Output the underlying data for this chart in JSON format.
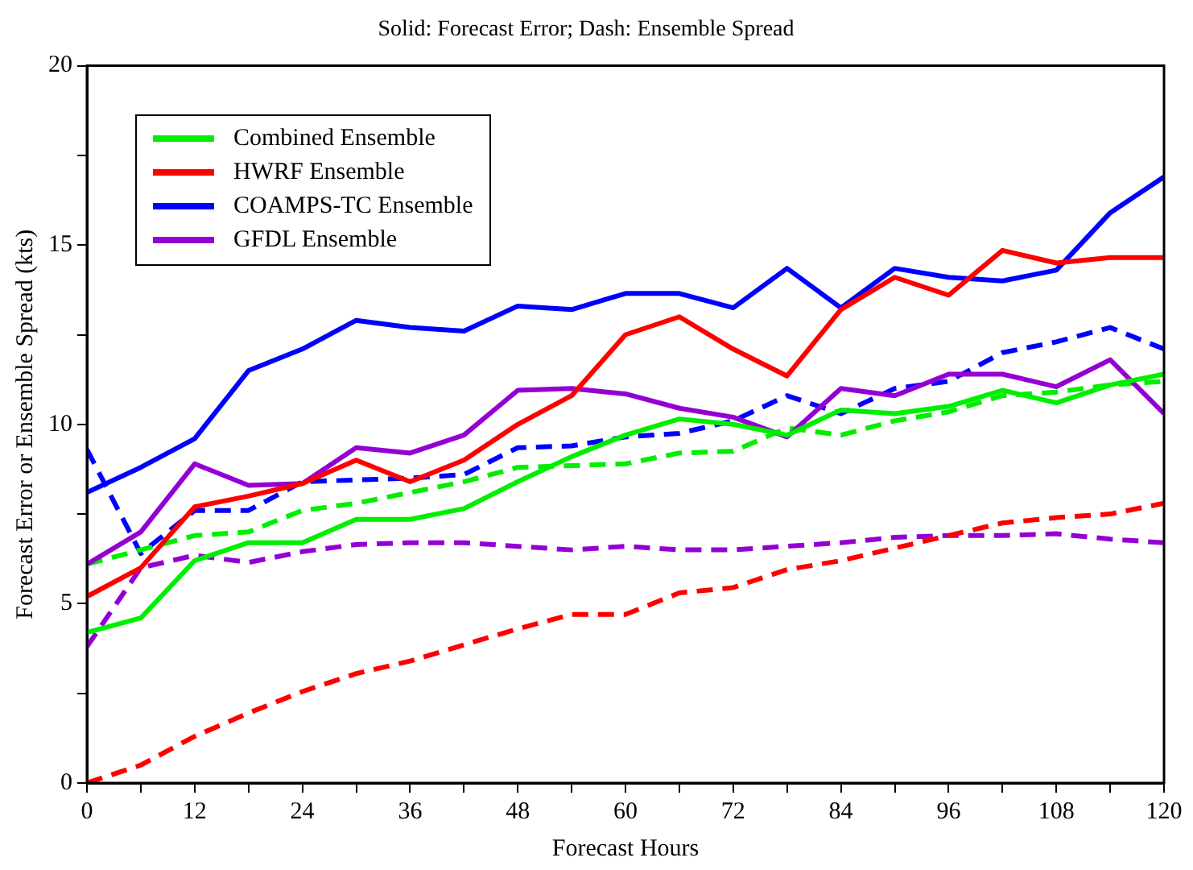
{
  "chart_data": {
    "type": "line",
    "title": "Solid: Forecast Error; Dash: Ensemble Spread",
    "xlabel": "Forecast Hours",
    "ylabel": "Forecast Error or Ensemble Spread (kts)",
    "x": [
      0,
      6,
      12,
      18,
      24,
      30,
      36,
      42,
      48,
      54,
      60,
      66,
      72,
      78,
      84,
      90,
      96,
      102,
      108,
      114,
      120
    ],
    "xlim": [
      0,
      120
    ],
    "xticks": [
      0,
      {
        "value": 6,
        "label": null
      },
      12,
      {
        "value": 18,
        "label": null
      },
      24,
      {
        "value": 30,
        "label": null
      },
      36,
      {
        "value": 42,
        "label": null
      },
      48,
      {
        "value": 54,
        "label": null
      },
      60,
      {
        "value": 66,
        "label": null
      },
      72,
      {
        "value": 78,
        "label": null
      },
      84,
      {
        "value": 90,
        "label": null
      },
      96,
      {
        "value": 102,
        "label": null
      },
      108,
      {
        "value": 114,
        "label": null
      },
      120
    ],
    "ylim": [
      0,
      20
    ],
    "yticks": [
      0,
      {
        "value": 2.5,
        "label": null
      },
      5,
      {
        "value": 7.5,
        "label": null
      },
      10,
      {
        "value": 12.5,
        "label": null
      },
      15,
      {
        "value": 17.5,
        "label": null
      },
      20
    ],
    "legend": "top left",
    "marker": "none",
    "series": [
      {
        "name": "Combined Ensemble",
        "color": "#00ee00",
        "line_style": "solid",
        "values": [
          4.2,
          4.6,
          6.2,
          6.7,
          6.7,
          7.35,
          7.35,
          7.65,
          8.4,
          9.1,
          9.7,
          10.15,
          10.0,
          9.7,
          10.4,
          10.3,
          10.5,
          10.95,
          10.6,
          11.1,
          11.4
        ]
      },
      {
        "name": "HWRF Ensemble",
        "color": "#ff0000",
        "line_style": "solid",
        "values": [
          5.2,
          6.0,
          7.7,
          8.0,
          8.35,
          9.0,
          8.4,
          9.0,
          10.0,
          10.8,
          12.5,
          13.0,
          12.1,
          11.35,
          13.2,
          14.1,
          13.6,
          14.85,
          14.5,
          14.65,
          14.65
        ]
      },
      {
        "name": "COAMPS-TC Ensemble",
        "color": "#0000ff",
        "line_style": "solid",
        "values": [
          8.1,
          8.8,
          9.6,
          11.5,
          12.1,
          12.9,
          12.7,
          12.6,
          13.3,
          13.2,
          13.65,
          13.65,
          13.25,
          14.35,
          13.25,
          14.35,
          14.1,
          14.0,
          14.3,
          15.9,
          16.9
        ]
      },
      {
        "name": "GFDL Ensemble",
        "color": "#9400d3",
        "line_style": "solid",
        "values": [
          6.1,
          7.0,
          8.9,
          8.3,
          8.35,
          9.35,
          9.2,
          9.7,
          10.95,
          11.0,
          10.85,
          10.45,
          10.2,
          9.65,
          11.0,
          10.8,
          11.4,
          11.4,
          11.05,
          11.8,
          10.3
        ]
      },
      {
        "color": "#00ee00",
        "line_style": "dashed",
        "values": [
          6.1,
          6.5,
          6.9,
          7.0,
          7.6,
          7.8,
          8.1,
          8.4,
          8.8,
          8.85,
          8.9,
          9.2,
          9.25,
          9.9,
          9.7,
          10.1,
          10.35,
          10.8,
          10.9,
          11.1,
          11.2
        ]
      },
      {
        "color": "#ff0000",
        "line_style": "dashed",
        "values": [
          0.0,
          0.5,
          1.3,
          1.95,
          2.55,
          3.05,
          3.4,
          3.85,
          4.3,
          4.7,
          4.7,
          5.3,
          5.45,
          5.95,
          6.2,
          6.55,
          6.9,
          7.25,
          7.4,
          7.5,
          7.8
        ]
      },
      {
        "color": "#0000ff",
        "line_style": "dashed",
        "values": [
          9.3,
          6.4,
          7.6,
          7.6,
          8.4,
          8.45,
          8.5,
          8.6,
          9.35,
          9.4,
          9.65,
          9.75,
          10.1,
          10.8,
          10.3,
          11.0,
          11.2,
          12.0,
          12.3,
          12.7,
          12.1
        ]
      },
      {
        "color": "#9400d3",
        "line_style": "dashed",
        "values": [
          3.8,
          6.0,
          6.35,
          6.15,
          6.45,
          6.65,
          6.7,
          6.7,
          6.6,
          6.5,
          6.6,
          6.5,
          6.5,
          6.6,
          6.7,
          6.85,
          6.9,
          6.9,
          6.95,
          6.8,
          6.7
        ]
      }
    ]
  }
}
